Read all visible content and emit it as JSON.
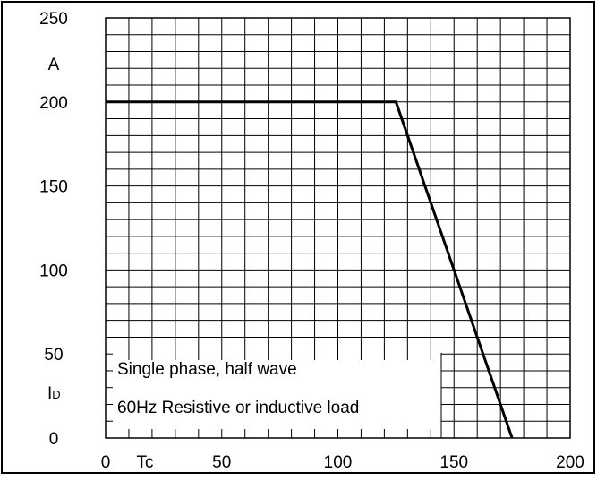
{
  "chart_data": {
    "type": "line",
    "title": "",
    "xlabel": "Tc",
    "ylabel_unit": "A",
    "ylabel_symbol": "I",
    "ylabel_subscript": "D",
    "xlim": [
      0,
      200
    ],
    "ylim": [
      0,
      250
    ],
    "x_ticks": [
      0,
      50,
      100,
      150,
      200
    ],
    "x_tick_labels": [
      "0",
      "50",
      "100",
      "150",
      "200"
    ],
    "y_ticks": [
      0,
      50,
      100,
      150,
      200,
      250
    ],
    "y_tick_labels": [
      "0",
      "50",
      "100",
      "150",
      "200",
      "250"
    ],
    "grid": true,
    "grid_x_step": 10,
    "grid_y_step": 10,
    "series": [
      {
        "x": [
          0,
          125,
          175
        ],
        "y": [
          200,
          200,
          0
        ]
      }
    ],
    "annotations": [
      "Single phase, half wave",
      "60Hz Resistive or inductive load"
    ],
    "colors": {
      "line": "#000000",
      "grid": "#000000",
      "background": "#ffffff"
    }
  }
}
